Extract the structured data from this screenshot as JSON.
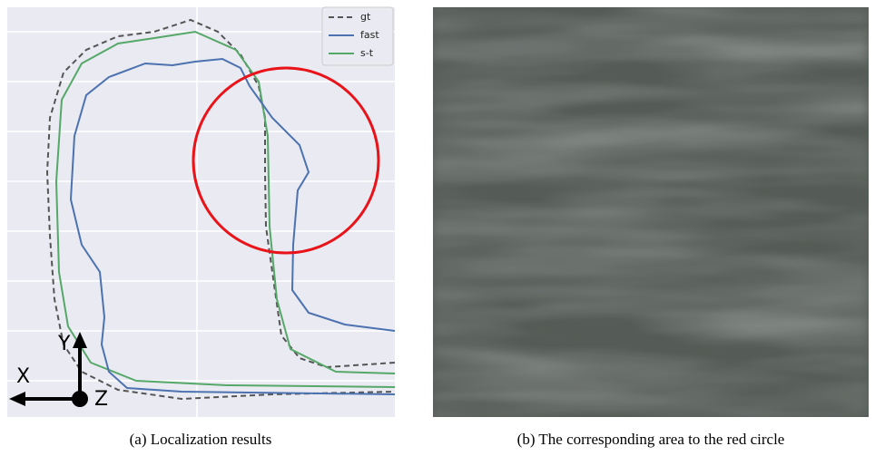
{
  "figure": {
    "panels": [
      {
        "caption": "(a) Localization results",
        "legend": [
          {
            "name": "gt",
            "color": "#555555"
          },
          {
            "name": "fast",
            "color": "#4c72b0"
          },
          {
            "name": "s-t",
            "color": "#55a868"
          }
        ],
        "axes": {
          "x": "X",
          "y": "Y",
          "z": "Z"
        }
      },
      {
        "caption": "(b) The corresponding area to the red circle"
      }
    ]
  }
}
